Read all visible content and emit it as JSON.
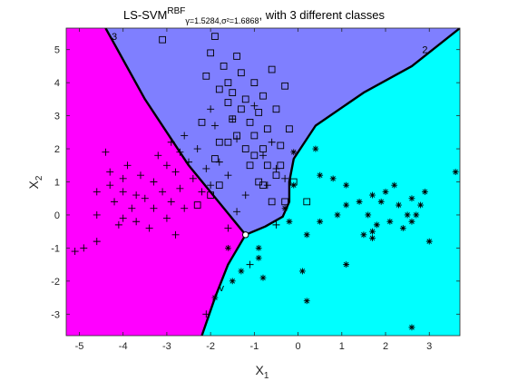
{
  "chart_data": {
    "type": "scatter",
    "title": {
      "main": "LS-SVM",
      "superscript": "RBF",
      "subscript": "γ=1.5284,σ²=1.6868",
      "suffix": ", with 3 different classes"
    },
    "xlabel": {
      "base": "X",
      "sub": "1"
    },
    "ylabel": {
      "base": "X",
      "sub": "2"
    },
    "xlim": [
      -5.3,
      3.7
    ],
    "ylim": [
      -3.65,
      5.65
    ],
    "xticks": [
      -5,
      -4,
      -3,
      -2,
      -1,
      0,
      1,
      2,
      3
    ],
    "yticks": [
      -3,
      -2,
      -1,
      0,
      1,
      2,
      3,
      4,
      5
    ],
    "grid": false,
    "legend": "none",
    "region_colors": {
      "class1": "#ff00ff",
      "class2": "#7f7fff",
      "class3": "#00ffff"
    },
    "boundary_color": "#000000",
    "boundaries": [
      {
        "name": "",
        "points": [
          [
            -1.2,
            -0.6
          ],
          [
            -2.5,
            1.5
          ],
          [
            -3.5,
            3.5
          ],
          [
            -4.4,
            5.65
          ]
        ]
      },
      {
        "name": "",
        "points": [
          [
            -1.2,
            -0.6
          ],
          [
            -0.75,
            -0.35
          ],
          [
            -0.35,
            -0.05
          ],
          [
            -0.2,
            0.4
          ],
          [
            -0.2,
            1.0
          ],
          [
            -0.1,
            1.7
          ],
          [
            0.4,
            2.7
          ],
          [
            1.5,
            3.7
          ],
          [
            2.6,
            4.5
          ],
          [
            3.7,
            5.65
          ]
        ]
      },
      {
        "name": "",
        "points": [
          [
            -1.2,
            -0.6
          ],
          [
            -1.6,
            -1.5
          ],
          [
            -1.9,
            -2.5
          ],
          [
            -2.2,
            -3.65
          ]
        ]
      }
    ],
    "boundary_labels": [
      {
        "text": "3",
        "x": -4.2,
        "y": 5.3
      },
      {
        "text": "2",
        "x": 2.9,
        "y": 4.9
      },
      {
        "text": "v",
        "x": -1.75,
        "y": -2.3
      }
    ],
    "vertex": [
      -1.2,
      -0.6
    ],
    "series": [
      {
        "marker": "plus",
        "points": [
          [
            -5.1,
            -1.1
          ],
          [
            -4.9,
            -1.0
          ],
          [
            -4.6,
            -0.8
          ],
          [
            -4.6,
            0.7
          ],
          [
            -4.6,
            0.0
          ],
          [
            -4.4,
            1.9
          ],
          [
            -4.3,
            1.3
          ],
          [
            -4.3,
            0.9
          ],
          [
            -4.2,
            0.4
          ],
          [
            -4.1,
            -0.3
          ],
          [
            -4.0,
            1.1
          ],
          [
            -4.0,
            0.7
          ],
          [
            -4.0,
            -0.1
          ],
          [
            -3.9,
            1.5
          ],
          [
            -3.8,
            0.2
          ],
          [
            -3.7,
            0.6
          ],
          [
            -3.7,
            -0.2
          ],
          [
            -3.6,
            1.2
          ],
          [
            -3.5,
            0.5
          ],
          [
            -3.4,
            -0.4
          ],
          [
            -3.3,
            1.0
          ],
          [
            -3.3,
            0.2
          ],
          [
            -3.2,
            1.8
          ],
          [
            -3.1,
            0.7
          ],
          [
            -3.0,
            1.5
          ],
          [
            -3.0,
            -0.1
          ],
          [
            -2.9,
            2.2
          ],
          [
            -2.9,
            0.4
          ],
          [
            -2.8,
            1.3
          ],
          [
            -2.8,
            -0.6
          ],
          [
            -2.7,
            1.9
          ],
          [
            -2.7,
            0.8
          ],
          [
            -2.6,
            2.4
          ],
          [
            -2.6,
            0.2
          ],
          [
            -2.5,
            1.6
          ],
          [
            -2.4,
            1.1
          ],
          [
            -2.3,
            2.0
          ],
          [
            -2.2,
            0.7
          ],
          [
            -2.1,
            1.4
          ],
          [
            -2.0,
            3.2
          ],
          [
            -2.0,
            0.9
          ],
          [
            -1.9,
            2.7
          ],
          [
            -1.8,
            1.6
          ],
          [
            -1.6,
            1.2
          ],
          [
            -1.6,
            -0.4
          ],
          [
            -1.5,
            2.9
          ],
          [
            -1.4,
            0.1
          ],
          [
            -1.4,
            2.3
          ],
          [
            -1.2,
            0.6
          ],
          [
            -1.0,
            3.3
          ],
          [
            -0.8,
            1.8
          ],
          [
            -0.7,
            0.9
          ],
          [
            -0.6,
            2.2
          ],
          [
            -0.5,
            1.4
          ],
          [
            -0.5,
            -0.3
          ],
          [
            -0.3,
            1.1
          ],
          [
            -1.1,
            -1.5
          ],
          [
            -2.1,
            -3.0
          ]
        ]
      },
      {
        "marker": "square",
        "points": [
          [
            -3.1,
            5.3
          ],
          [
            -2.0,
            4.9
          ],
          [
            -2.1,
            4.2
          ],
          [
            -1.9,
            5.4
          ],
          [
            -1.8,
            3.8
          ],
          [
            -1.7,
            4.5
          ],
          [
            -1.6,
            3.4
          ],
          [
            -1.6,
            4.0
          ],
          [
            -1.5,
            2.9
          ],
          [
            -1.5,
            3.7
          ],
          [
            -1.4,
            4.8
          ],
          [
            -1.4,
            2.4
          ],
          [
            -1.3,
            3.2
          ],
          [
            -1.3,
            4.3
          ],
          [
            -1.2,
            2.0
          ],
          [
            -1.2,
            3.5
          ],
          [
            -1.1,
            1.5
          ],
          [
            -1.1,
            2.8
          ],
          [
            -1.0,
            4.0
          ],
          [
            -1.0,
            2.4
          ],
          [
            -0.9,
            3.1
          ],
          [
            -0.9,
            1.0
          ],
          [
            -0.8,
            2.0
          ],
          [
            -0.8,
            3.6
          ],
          [
            -0.7,
            1.5
          ],
          [
            -0.7,
            2.6
          ],
          [
            -0.6,
            4.4
          ],
          [
            -0.5,
            3.2
          ],
          [
            -0.5,
            1.2
          ],
          [
            -0.4,
            2.1
          ],
          [
            -0.3,
            0.4
          ],
          [
            -0.2,
            2.6
          ],
          [
            -0.1,
            1.0
          ],
          [
            -0.3,
            3.9
          ],
          [
            -1.8,
            2.2
          ],
          [
            -1.9,
            1.7
          ],
          [
            -2.2,
            2.8
          ],
          [
            -2.3,
            0.3
          ],
          [
            -2.0,
            0.6
          ],
          [
            -1.8,
            0.9
          ],
          [
            -1.6,
            2.2
          ],
          [
            -1.0,
            1.8
          ],
          [
            -0.8,
            0.9
          ],
          [
            -0.6,
            0.4
          ],
          [
            -0.4,
            1.5
          ],
          [
            0.2,
            0.4
          ]
        ]
      },
      {
        "marker": "asterisk",
        "points": [
          [
            3.6,
            1.3
          ],
          [
            2.9,
            0.7
          ],
          [
            2.8,
            0.3
          ],
          [
            2.7,
            0.0
          ],
          [
            2.6,
            0.5
          ],
          [
            2.5,
            0.0
          ],
          [
            2.4,
            -0.4
          ],
          [
            2.3,
            0.3
          ],
          [
            2.2,
            0.9
          ],
          [
            2.1,
            -0.2
          ],
          [
            2.0,
            0.7
          ],
          [
            1.9,
            0.4
          ],
          [
            1.8,
            -0.3
          ],
          [
            1.7,
            0.6
          ],
          [
            1.7,
            -0.7
          ],
          [
            1.6,
            0.0
          ],
          [
            1.5,
            -0.6
          ],
          [
            1.4,
            0.4
          ],
          [
            1.1,
            0.3
          ],
          [
            1.1,
            0.9
          ],
          [
            1.1,
            -1.5
          ],
          [
            0.9,
            0.0
          ],
          [
            0.8,
            1.1
          ],
          [
            0.5,
            -0.2
          ],
          [
            0.5,
            1.2
          ],
          [
            0.4,
            2.0
          ],
          [
            0.2,
            -0.6
          ],
          [
            0.2,
            -2.6
          ],
          [
            0.1,
            -1.7
          ],
          [
            -0.1,
            0.9
          ],
          [
            -0.1,
            1.9
          ],
          [
            -0.2,
            -0.2
          ],
          [
            -0.3,
            0.2
          ],
          [
            -0.8,
            -1.9
          ],
          [
            -0.9,
            -1.3
          ],
          [
            -0.9,
            -1.0
          ],
          [
            -1.3,
            -1.7
          ],
          [
            -1.5,
            -2.0
          ],
          [
            -1.6,
            -1.0
          ],
          [
            -1.9,
            -2.5
          ],
          [
            2.6,
            -3.4
          ],
          [
            3.0,
            -0.8
          ],
          [
            1.7,
            -0.5
          ],
          [
            2.6,
            -0.2
          ]
        ]
      }
    ]
  }
}
